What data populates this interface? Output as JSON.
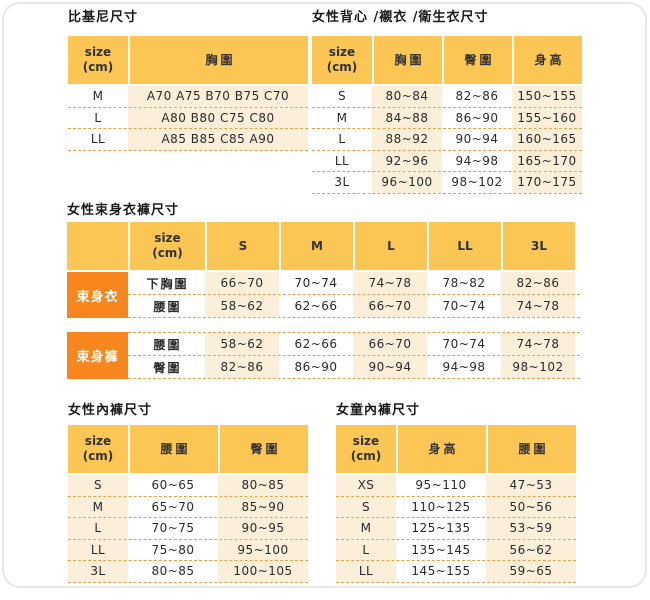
{
  "page": {
    "border_color": "#e7e7ea",
    "background": "#ffffff"
  },
  "colors": {
    "header_bg": "#fcc655",
    "row_cream": "#fcefda",
    "group_label_bg": "#f7871d",
    "dashed_line": "#efa042",
    "text": "#333333"
  },
  "tables": {
    "bikini": {
      "title": "比基尼尺寸",
      "headers": [
        "size\n(cm)",
        "胸圍"
      ],
      "rows": [
        [
          "M",
          "A70 A75 B70 B75 C70"
        ],
        [
          "L",
          "A80 B80 C75 C80"
        ],
        [
          "LL",
          "A85 B85 C85 A90"
        ]
      ]
    },
    "vest": {
      "title": "女性背心 /襯衣 /衛生衣尺寸",
      "headers": [
        "size\n(cm)",
        "胸圍",
        "臀圍",
        "身高"
      ],
      "rows": [
        [
          "S",
          "80~84",
          "82~86",
          "150~155"
        ],
        [
          "M",
          "84~88",
          "86~90",
          "155~160"
        ],
        [
          "L",
          "88~92",
          "90~94",
          "160~165"
        ],
        [
          "LL",
          "92~96",
          "94~98",
          "165~170"
        ],
        [
          "3L",
          "96~100",
          "98~102",
          "170~175"
        ]
      ]
    },
    "shapewear": {
      "title": "女性束身衣褲尺寸",
      "headers": [
        "",
        "size\n(cm)",
        "S",
        "M",
        "L",
        "LL",
        "3L"
      ],
      "groups": [
        {
          "label": "束身衣",
          "rows": [
            [
              "下胸圍",
              "66~70",
              "70~74",
              "74~78",
              "78~82",
              "82~86"
            ],
            [
              "腰圍",
              "58~62",
              "62~66",
              "66~70",
              "70~74",
              "74~78"
            ]
          ]
        },
        {
          "label": "束身褲",
          "rows": [
            [
              "腰圍",
              "58~62",
              "62~66",
              "66~70",
              "70~74",
              "74~78"
            ],
            [
              "臀圍",
              "82~86",
              "86~90",
              "90~94",
              "94~98",
              "98~102"
            ]
          ]
        }
      ]
    },
    "women_panties": {
      "title": "女性內褲尺寸",
      "headers": [
        "size\n(cm)",
        "腰圍",
        "臀圍"
      ],
      "rows": [
        [
          "S",
          "60~65",
          "80~85"
        ],
        [
          "M",
          "65~70",
          "85~90"
        ],
        [
          "L",
          "70~75",
          "90~95"
        ],
        [
          "LL",
          "75~80",
          "95~100"
        ],
        [
          "3L",
          "80~85",
          "100~105"
        ]
      ]
    },
    "girls_panties": {
      "title": "女童內褲尺寸",
      "headers": [
        "size\n(cm)",
        "身高",
        "腰圍"
      ],
      "rows": [
        [
          "XS",
          "95~110",
          "47~53"
        ],
        [
          "S",
          "110~125",
          "50~56"
        ],
        [
          "M",
          "125~135",
          "53~59"
        ],
        [
          "L",
          "135~145",
          "56~62"
        ],
        [
          "LL",
          "145~155",
          "59~65"
        ]
      ]
    }
  }
}
